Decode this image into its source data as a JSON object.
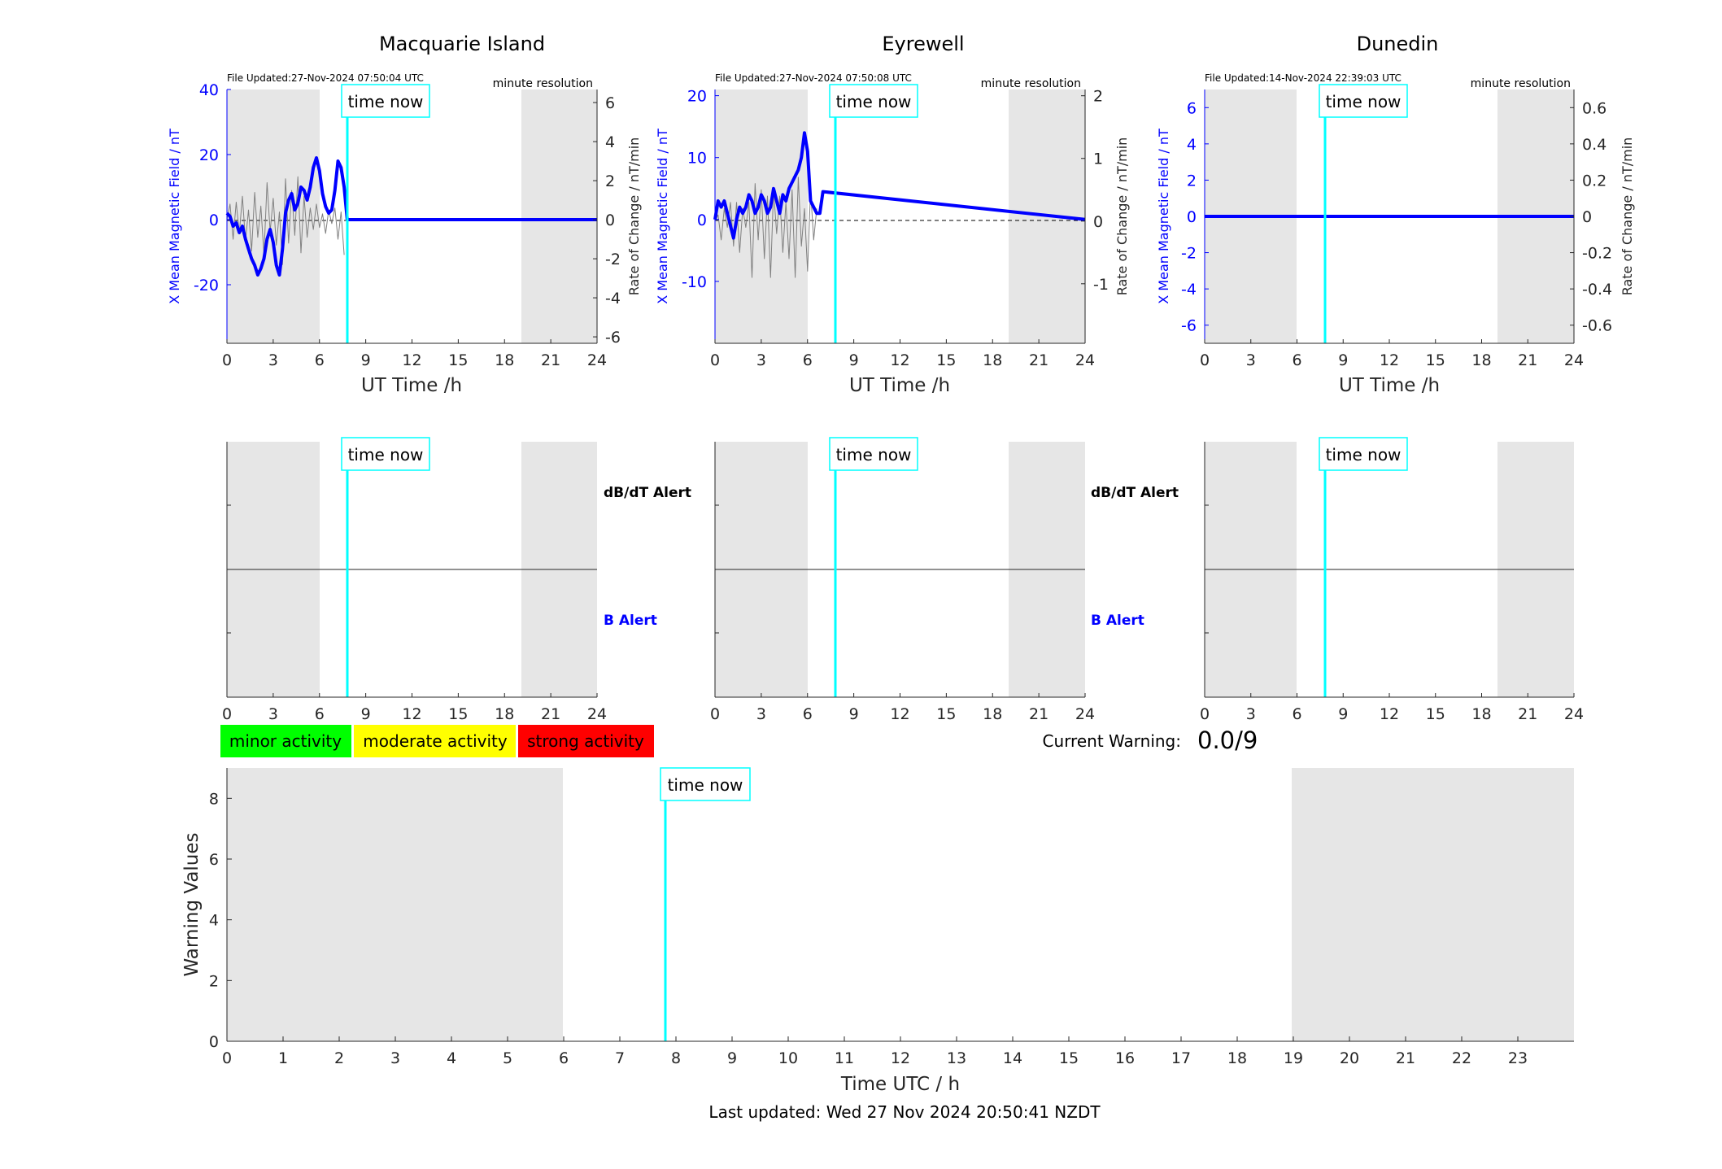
{
  "stations": [
    {
      "name": "Macquarie Island",
      "file_updated": "File Updated:27-Nov-2024 07:50:04 UTC",
      "resolution": "minute resolution",
      "left_ylabel": "X Mean Magnetic Field / nT",
      "right_ylabel": "Rate of Change / nT/min",
      "left_ticks": [
        "-20",
        "0",
        "20",
        "40"
      ],
      "right_ticks": [
        "-6",
        "-4",
        "-2",
        "0",
        "2",
        "4",
        "6"
      ]
    },
    {
      "name": "Eyrewell",
      "file_updated": "File Updated:27-Nov-2024 07:50:08 UTC",
      "resolution": "minute resolution",
      "left_ylabel": "X Mean Magnetic Field / nT",
      "right_ylabel": "Rate of Change / nT/min",
      "left_ticks": [
        "-10",
        "0",
        "10",
        "20"
      ],
      "right_ticks": [
        "-1",
        "0",
        "1",
        "2"
      ]
    },
    {
      "name": "Dunedin",
      "file_updated": "File Updated:14-Nov-2024 22:39:03 UTC",
      "resolution": "minute resolution",
      "left_ylabel": "X Mean Magnetic Field / nT",
      "right_ylabel": "Rate of Change / nT/min",
      "left_ticks": [
        "-6",
        "-4",
        "-2",
        "0",
        "2",
        "4",
        "6"
      ],
      "right_ticks": [
        "-0.6",
        "-0.4",
        "-0.2",
        "0",
        "0.2",
        "0.4",
        "0.6"
      ]
    }
  ],
  "common": {
    "xlabel": "UT Time /h",
    "x_ticks": [
      "0",
      "3",
      "6",
      "9",
      "12",
      "15",
      "18",
      "21",
      "24"
    ],
    "time_now_label": "time now",
    "dbdt_alert": "dB/dT Alert",
    "b_alert": "B Alert"
  },
  "legend": {
    "minor": "minor activity",
    "moderate": "moderate activity",
    "strong": "strong activity"
  },
  "warning": {
    "label": "Current Warning:",
    "value": "0.0/9"
  },
  "bottom": {
    "ylabel": "Warning Values",
    "xlabel": "Time UTC / h",
    "y_ticks": [
      "0",
      "2",
      "4",
      "6",
      "8"
    ],
    "x_ticks": [
      "0",
      "1",
      "2",
      "3",
      "4",
      "5",
      "6",
      "7",
      "8",
      "9",
      "10",
      "11",
      "12",
      "13",
      "14",
      "15",
      "16",
      "17",
      "18",
      "19",
      "20",
      "21",
      "22",
      "23"
    ]
  },
  "footer": "Last updated: Wed 27 Nov 2024 20:50:41 NZDT",
  "colors": {
    "night_shade": "#e6e6e6",
    "time_now_line": "#00ffff",
    "field_line": "#0000ff",
    "rate_line": "#808080",
    "minor": "#00ff00",
    "moderate": "#ffff00",
    "strong": "#ff0000"
  },
  "chart_data": [
    {
      "type": "line",
      "title": "Macquarie Island",
      "xlabel": "UT Time /h",
      "ylabel": "X Mean Magnetic Field / nT",
      "y2label": "Rate of Change / nT/min",
      "xlim": [
        0,
        24
      ],
      "ylim": [
        -38,
        40
      ],
      "y2lim": [
        -6.33,
        6.67
      ],
      "night_shade_hours": [
        [
          0,
          6
        ],
        [
          19,
          24
        ]
      ],
      "time_now_hour": 7.8,
      "series": [
        {
          "axis": "left",
          "x": [
            0,
            0.2,
            0.4,
            0.6,
            0.8,
            1.0,
            1.2,
            1.4,
            1.6,
            1.8,
            2.0,
            2.2,
            2.4,
            2.6,
            2.8,
            3.0,
            3.2,
            3.4,
            3.6,
            3.8,
            4.0,
            4.2,
            4.4,
            4.6,
            4.8,
            5.0,
            5.2,
            5.4,
            5.6,
            5.8,
            6.0,
            6.2,
            6.4,
            6.6,
            6.8,
            7.0,
            7.2,
            7.4,
            7.6,
            7.8,
            24
          ],
          "y": [
            2,
            1,
            -2,
            -1,
            -4,
            -2,
            -6,
            -9,
            -12,
            -14,
            -17,
            -15,
            -12,
            -6,
            -3,
            -7,
            -14,
            -17,
            -9,
            2,
            6,
            8,
            3,
            5,
            10,
            9,
            6,
            10,
            16,
            19,
            15,
            8,
            4,
            2,
            3,
            9,
            18,
            16,
            10,
            0,
            0
          ]
        },
        {
          "axis": "right",
          "x": [
            0,
            0.2,
            0.4,
            0.6,
            0.8,
            1.0,
            1.2,
            1.4,
            1.6,
            1.8,
            2.0,
            2.2,
            2.4,
            2.6,
            2.8,
            3.0,
            3.2,
            3.4,
            3.6,
            3.8,
            4.0,
            4.2,
            4.4,
            4.6,
            4.8,
            5.0,
            5.2,
            5.4,
            5.6,
            5.8,
            6.0,
            6.2,
            6.4,
            6.6,
            6.8,
            7.0,
            7.2,
            7.4,
            7.6
          ],
          "y": [
            0,
            0.8,
            -1.0,
            0.9,
            -0.7,
            1.2,
            -1.1,
            0.5,
            -1.6,
            1.4,
            -0.9,
            0.7,
            -1.8,
            1.9,
            -0.6,
            1.1,
            -1.3,
            0.4,
            -2.3,
            2.1,
            -1.2,
            1.5,
            -0.8,
            2.2,
            -1.7,
            1.2,
            -0.9,
            0.6,
            -0.5,
            0.8,
            -0.4,
            0.3,
            -0.7,
            0.5,
            -0.2,
            0.6,
            -1.0,
            0.4,
            -1.8
          ]
        }
      ]
    },
    {
      "type": "line",
      "title": "Eyrewell",
      "xlabel": "UT Time /h",
      "ylabel": "X Mean Magnetic Field / nT",
      "y2label": "Rate of Change / nT/min",
      "xlim": [
        0,
        24
      ],
      "ylim": [
        -20,
        21
      ],
      "y2lim": [
        -1.95,
        2.1
      ],
      "night_shade_hours": [
        [
          0,
          6
        ],
        [
          19,
          24
        ]
      ],
      "time_now_hour": 7.8,
      "series": [
        {
          "axis": "left",
          "x": [
            0,
            0.2,
            0.4,
            0.6,
            0.8,
            1.0,
            1.2,
            1.4,
            1.6,
            1.8,
            2.0,
            2.2,
            2.4,
            2.6,
            2.8,
            3.0,
            3.2,
            3.4,
            3.6,
            3.8,
            4.0,
            4.2,
            4.4,
            4.6,
            4.8,
            5.0,
            5.2,
            5.4,
            5.6,
            5.8,
            6.0,
            6.2,
            6.4,
            6.6,
            6.8,
            7.0,
            24
          ],
          "y": [
            0,
            3,
            2,
            3,
            1,
            -1,
            -3,
            0,
            2,
            1,
            2,
            4,
            3,
            1,
            2,
            4,
            3,
            1,
            2,
            5,
            3,
            1,
            4,
            3,
            5,
            6,
            7,
            8,
            10,
            14,
            11,
            3,
            2,
            1,
            1,
            4.5,
            0
          ]
        },
        {
          "axis": "right",
          "x": [
            0,
            0.2,
            0.4,
            0.6,
            0.8,
            1.0,
            1.2,
            1.4,
            1.6,
            1.8,
            2.0,
            2.2,
            2.4,
            2.6,
            2.8,
            3.0,
            3.2,
            3.4,
            3.6,
            3.8,
            4.0,
            4.2,
            4.4,
            4.6,
            4.8,
            5.0,
            5.2,
            5.4,
            5.6,
            5.8,
            6.0,
            6.2,
            6.4,
            6.6
          ],
          "y": [
            0,
            0.1,
            -0.3,
            0.2,
            -0.1,
            0.3,
            -0.4,
            0.3,
            -0.5,
            0.2,
            -0.1,
            0.3,
            -0.9,
            0.6,
            -0.3,
            0.5,
            -0.6,
            0.4,
            -0.9,
            0.5,
            -0.2,
            0.4,
            -0.5,
            0.3,
            -0.6,
            0.5,
            -0.9,
            0.7,
            -0.4,
            0.2,
            -0.8,
            0.5,
            -0.3,
            0.2
          ]
        }
      ]
    },
    {
      "type": "line",
      "title": "Dunedin",
      "xlabel": "UT Time /h",
      "ylabel": "X Mean Magnetic Field / nT",
      "y2label": "Rate of Change / nT/min",
      "xlim": [
        0,
        24
      ],
      "ylim": [
        -7,
        7
      ],
      "y2lim": [
        -0.7,
        0.7
      ],
      "night_shade_hours": [
        [
          0,
          6
        ],
        [
          19,
          24
        ]
      ],
      "time_now_hour": 7.8,
      "series": [
        {
          "axis": "left",
          "x": [
            0,
            24
          ],
          "y": [
            0,
            0
          ]
        },
        {
          "axis": "right",
          "x": [
            0,
            24
          ],
          "y": [
            0,
            0
          ]
        }
      ]
    },
    {
      "type": "line",
      "title": "",
      "xlabel": "Time UTC / h",
      "ylabel": "Warning Values",
      "xlim": [
        0,
        24
      ],
      "ylim": [
        0,
        9
      ],
      "night_shade_hours": [
        [
          0,
          6
        ],
        [
          19,
          24
        ]
      ],
      "time_now_hour": 7.8,
      "series": []
    }
  ]
}
